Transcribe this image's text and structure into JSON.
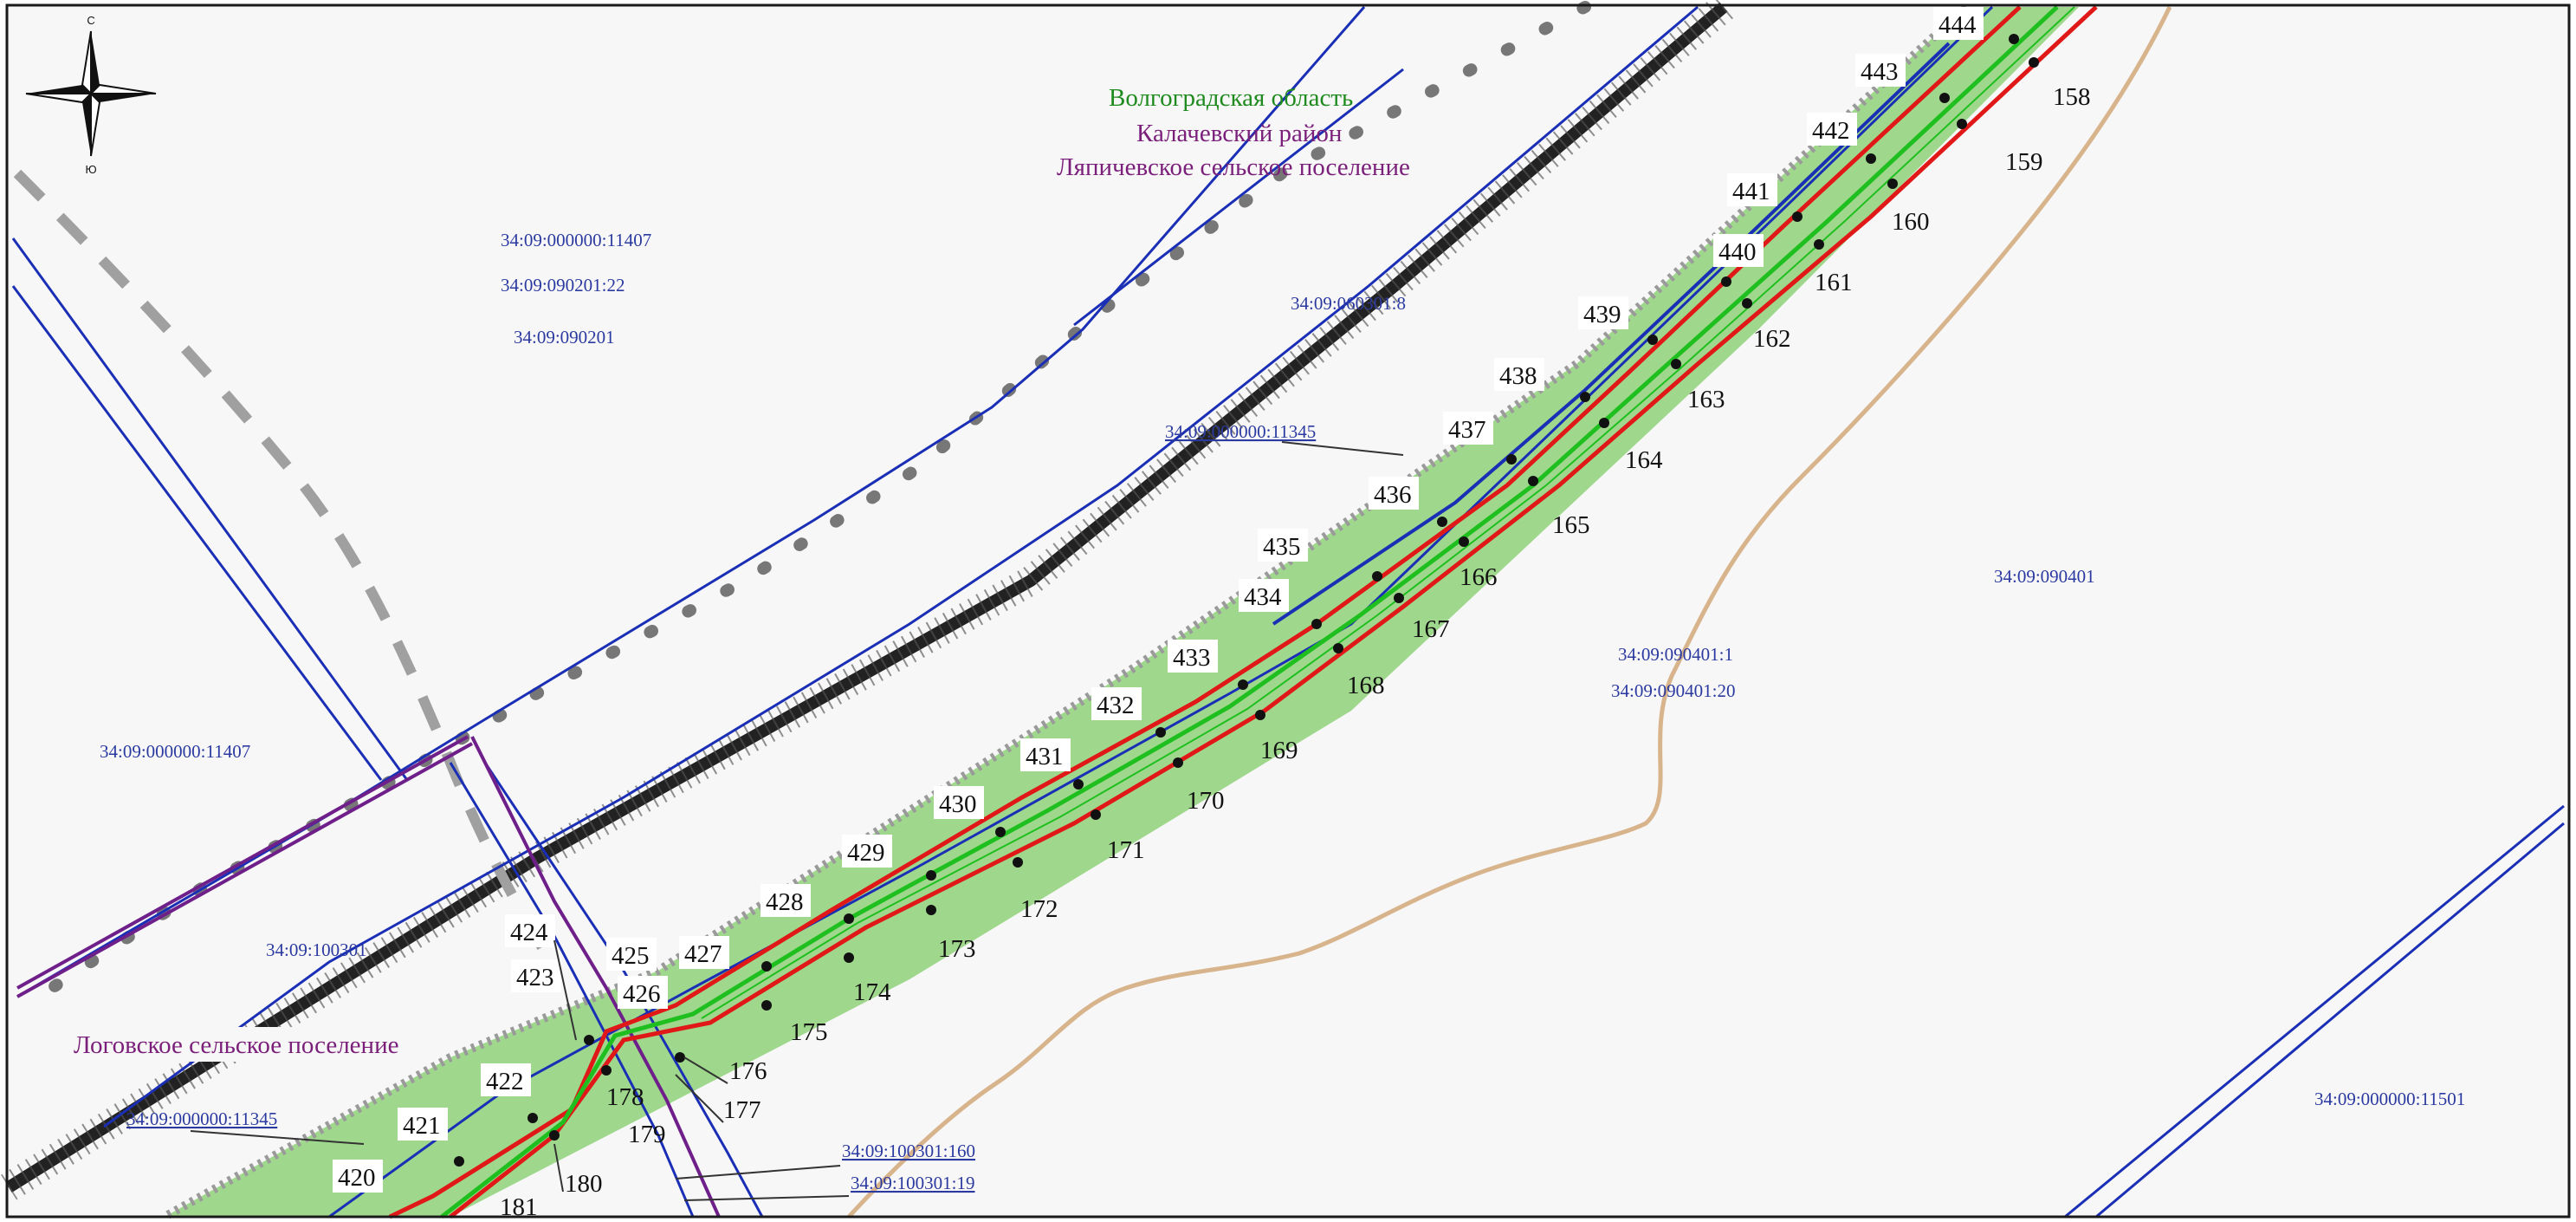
{
  "compass": {
    "north": "С",
    "south": "Ю"
  },
  "admin_labels": [
    {
      "text": "Волгоградская область",
      "color": "#1f8a1f"
    },
    {
      "text": "Калачевский район",
      "color": "#7a1f7a"
    },
    {
      "text": "Ляпичевское сельское поселение",
      "color": "#7a1f7a"
    },
    {
      "text": "Логовское сельское поселение",
      "color": "#7a1f7a"
    }
  ],
  "cadastral_labels": [
    {
      "text": "34:09:000000:11407",
      "underline": false
    },
    {
      "text": "34:09:090201:22",
      "underline": false
    },
    {
      "text": "34:09:090201",
      "underline": false
    },
    {
      "text": "34:09:060301:8",
      "underline": false
    },
    {
      "text": "34:09:000000:11345",
      "underline": true
    },
    {
      "text": "34:09:090401",
      "underline": false
    },
    {
      "text": "34:09:090401:1",
      "underline": false
    },
    {
      "text": "34:09:090401:20",
      "underline": false
    },
    {
      "text": "34:09:000000:11407",
      "underline": false
    },
    {
      "text": "34:09:100301",
      "underline": false
    },
    {
      "text": "34:09:000000:11345",
      "underline": true
    },
    {
      "text": "34:09:100301:160",
      "underline": true
    },
    {
      "text": "34:09:100301:19",
      "underline": true
    },
    {
      "text": "34:09:000000:11501",
      "underline": false
    }
  ],
  "upper_points": [
    "444",
    "443",
    "442",
    "441",
    "440",
    "439",
    "438",
    "437",
    "436",
    "435",
    "434",
    "433",
    "432",
    "431",
    "430",
    "429",
    "428",
    "427",
    "426",
    "425",
    "424",
    "423",
    "422",
    "421",
    "420"
  ],
  "lower_points": [
    "158",
    "159",
    "160",
    "161",
    "162",
    "163",
    "164",
    "165",
    "166",
    "167",
    "168",
    "169",
    "170",
    "171",
    "172",
    "173",
    "174",
    "175",
    "176",
    "177",
    "178",
    "179",
    "180",
    "181"
  ],
  "colors": {
    "green_zone": "#9fd88c",
    "red_line": "#e01818",
    "green_line": "#1fbf1f",
    "blue_line": "#1a2fb5",
    "purple_boundary": "#6f1f8a",
    "sand_line": "#d8b48c",
    "forest_belt": "#222222"
  }
}
